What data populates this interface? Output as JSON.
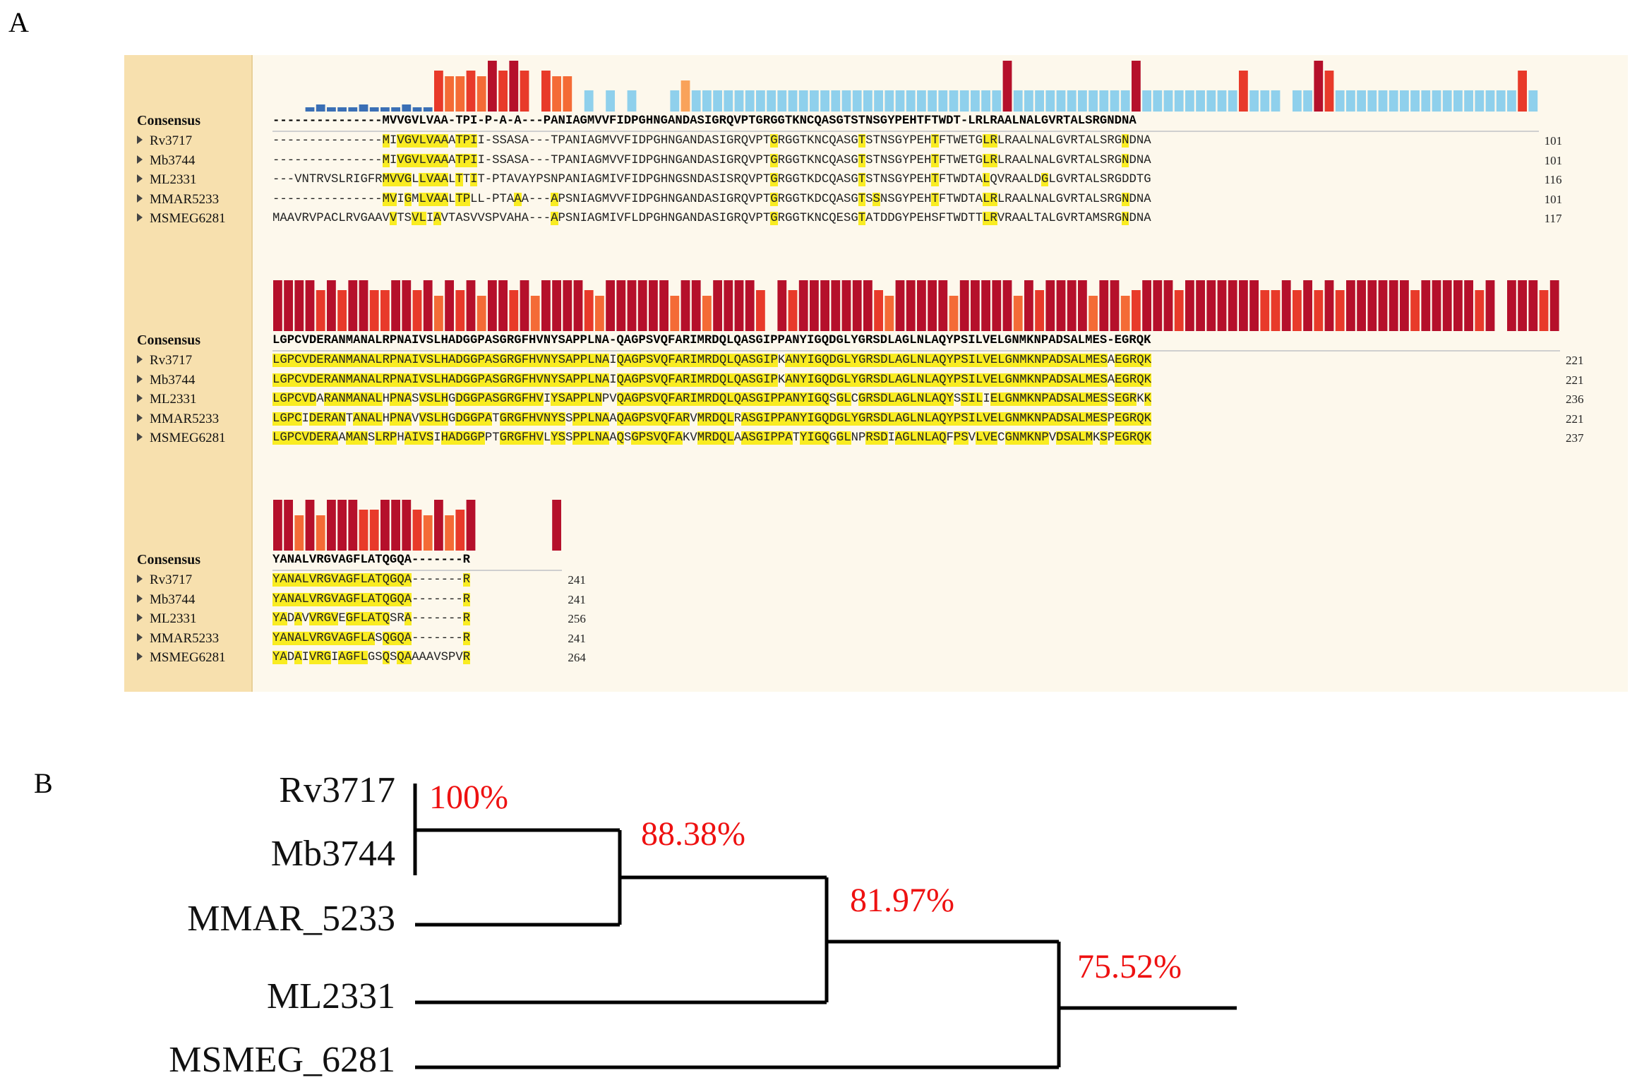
{
  "panel_a_label": "A",
  "panel_b_label": "B",
  "alignment": {
    "consensus_label": "Consensus",
    "blocks": [
      {
        "consensus": "---------------MVVGVLVAA-TPI-P-A-A---PANIAGMVVFIDPGHNGANDASIGRQVPTGRGGTKNCQASGTSTNSGYPEHTFTWDT-LRLRAALNALGVRTALSRGNDNA",
        "rows": [
          {
            "name": "Rv3717",
            "seq": "---------------MIVGVLVAAATPII-SSASA---TPANIAGMVVFIDPGHNGANDASIGRQVPTGRGGTKNCQASGTSTNSGYPEHTFTWETGLRLRAALNALGVRTALSRGNDNA",
            "end": "101"
          },
          {
            "name": "Mb3744",
            "seq": "---------------MIVGVLVAAATPII-SSASA---TPANIAGMVVFIDPGHNGANDASIGRQVPTGRGGTKNCQASGTSTNSGYPEHTFTWETGLRLRAALNALGVRTALSRGNDNA",
            "end": "101"
          },
          {
            "name": "ML2331",
            "seq": "---VNTRVSLRIGFRMVVGLLVAALTTIT-PTAVAYPSNPANIAGMIVFIDPGHNGSNDASISRQVPTGRGGTKDCQASGTSTNSGYPEHTFTWDTALQVRAALDGLGVRTALSRGDDTG",
            "end": "116"
          },
          {
            "name": "MMAR5233",
            "seq": "---------------MVIGMLVAALTPLL-PTAAA---APSNIAGMVVFIDPGHNGANDASIGRQVPTGRGGTKDCQASGTSSNSGYPEHTFTWDTALRLRAALNALGVRTALSRGNDNA",
            "end": "101"
          },
          {
            "name": "MSMEG6281",
            "seq": "MAAVRVPACLRVGAAVVTSVLIAVTASVVSPVAHA---APSNIAGMIVFLDPGHNGANDASIGRQVPTGRGGTKNCQESGTATDDGYPEHSFTWDTTLRVRAALTALGVRTAMSRGNDNA",
            "end": "117"
          }
        ]
      },
      {
        "consensus": "LGPCVDERANMANALRPNAIVSLHADGGPASGRGFHVNYSAPPLNA-QAGPSVQFARIMRDQLQASGIPPANYIGQDGLYGRSDLAGLNLAQYPSILVELGNMKNPADSALMES-EGRQK",
        "rows": [
          {
            "name": "Rv3717",
            "seq": "LGPCVDERANMANALRPNAIVSLHADGGPASGRGFHVNYSAPPLNAIQAGPSVQFARIMRDQLQASGIPKANYIGQDGLYGRSDLAGLNLAQYPSILVELGNMKNPADSALMESAEGRQK",
            "end": "221"
          },
          {
            "name": "Mb3744",
            "seq": "LGPCVDERANMANALRPNAIVSLHADGGPASGRGFHVNYSAPPLNAIQAGPSVQFARIMRDQLQASGIPKANYIGQDGLYGRSDLAGLNLAQYPSILVELGNMKNPADSALMESAEGRQK",
            "end": "221"
          },
          {
            "name": "ML2331",
            "seq": "LGPCVDARANMANALHPNASVSLHGDGGPASGRGFHVIYSAPPLNPVQAGPSVQFARIMRDQLQASGIPPANYIGQSGLCGRSDLAGLNLAQYSSILIELGNMKNPADSALMESSEGRKK",
            "end": "236"
          },
          {
            "name": "MMAR5233",
            "seq": "LGPCIDERANTANALHPNAVVSLHGDGGPATGRGFHVNYSSPPLNAAQAGPSVQFARVMRDQLRASGIPPANYIGQDGLYGRSDLAGLNLAQYPSILVELGNMKNPADSALMESPEGRQK",
            "end": "221"
          },
          {
            "name": "MSMEG6281",
            "seq": "LGPCVDERAAMANSLRPHAIVSIHADGGPPTGRGFHVLYSSPPLNAAQSGPSVQFAKVMRDQLAASGIPPATYIGQGGLNPRSDIAGLNLAQFPSVLVECGNMKNPVDSALMKSPEGRQK",
            "end": "237"
          }
        ]
      },
      {
        "consensus": "YANALVRGVAGFLATQGQA-------R",
        "rows": [
          {
            "name": "Rv3717",
            "seq": "YANALVRGVAGFLATQGQA-------R",
            "end": "241"
          },
          {
            "name": "Mb3744",
            "seq": "YANALVRGVAGFLATQGQA-------R",
            "end": "241"
          },
          {
            "name": "ML2331",
            "seq": "YADAVVRGVEGFLATQSRA-------R",
            "end": "256"
          },
          {
            "name": "MMAR5233",
            "seq": "YANALVRGVAGFLASQGQA-------R",
            "end": "241"
          },
          {
            "name": "MSMEG6281",
            "seq": "YADAIVRGIAGFLGSQSQAAAAVSPVR",
            "end": "264"
          }
        ]
      }
    ],
    "colors": {
      "highlight": "#f9ec22",
      "bar_high": "#b5102b",
      "bar_mid": "#e83a2a",
      "bar_low": "#f46b36",
      "bar_lower": "#f9a25a",
      "bar_cyan": "#8fd0ec",
      "bar_blue": "#3a6fb5"
    }
  },
  "tree": {
    "leaves": [
      "Rv3717",
      "Mb3744",
      "MMAR_5233",
      "ML2331",
      "MSMEG_6281"
    ],
    "support": [
      "100%",
      "88.38%",
      "81.97%",
      "75.52%"
    ],
    "support_color": "#ee1111"
  }
}
